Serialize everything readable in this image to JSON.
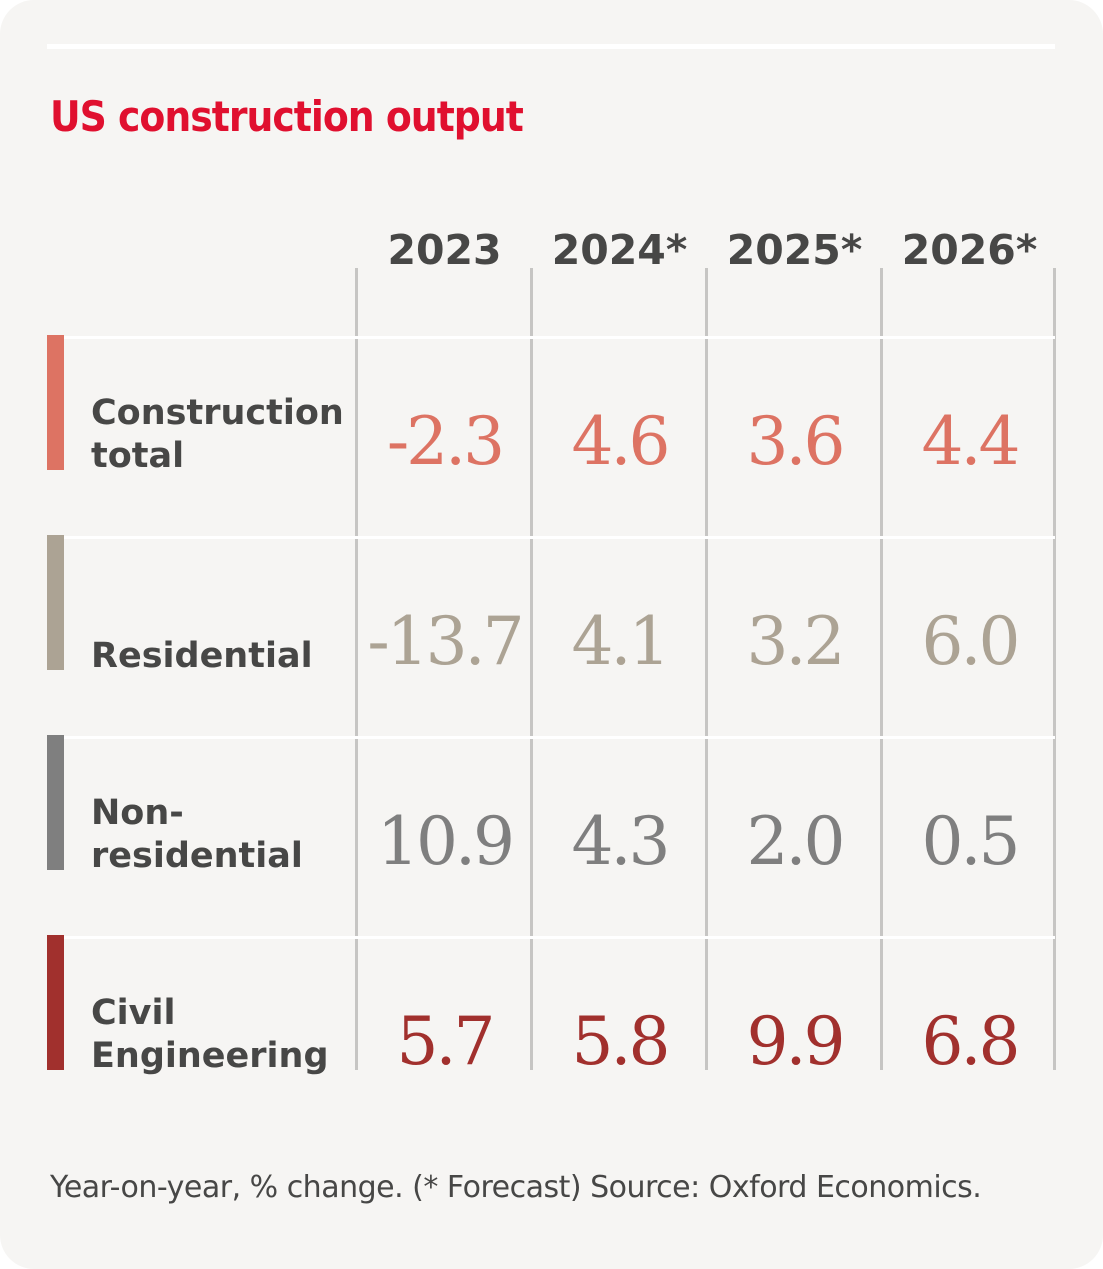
{
  "chart_data": {
    "type": "table",
    "title": "US construction output",
    "columns": [
      "2023",
      "2024*",
      "2025*",
      "2026*"
    ],
    "rows": [
      {
        "label": "Construction total",
        "label_lines": [
          "Construction",
          "total"
        ],
        "color": "#dd7363",
        "values": [
          "-2.3",
          "4.6",
          "3.6",
          "4.4"
        ]
      },
      {
        "label": "Residential",
        "label_lines": [
          "Residential"
        ],
        "color": "#aca394",
        "values": [
          "-13.7",
          "4.1",
          "3.2",
          "6.0"
        ]
      },
      {
        "label": "Non-residential",
        "label_lines": [
          "Non-",
          "residential"
        ],
        "color": "#7f7f7f",
        "values": [
          "10.9",
          "4.3",
          "2.0",
          "0.5"
        ]
      },
      {
        "label": "Civil Engineering",
        "label_lines": [
          "Civil",
          "Engineering"
        ],
        "color": "#a1302d",
        "values": [
          "5.7",
          "5.8",
          "9.9",
          "6.8"
        ]
      }
    ],
    "footnote": "Year-on-year, % change. (* Forecast) Source: Oxford Economics."
  },
  "colors": {
    "title": "#e0102f",
    "text": "#474746",
    "background": "#f6f5f3"
  }
}
